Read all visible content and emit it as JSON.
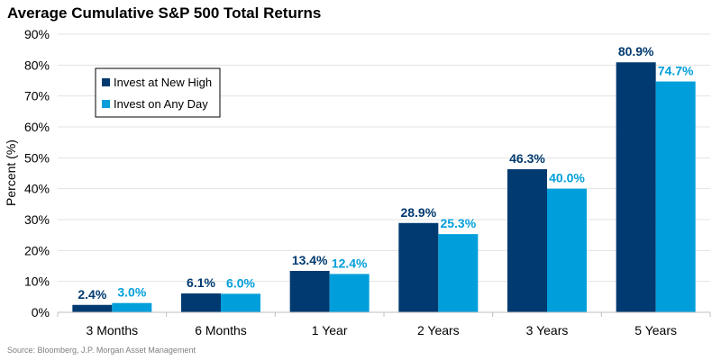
{
  "chart_data": {
    "type": "bar",
    "title": "Average Cumulative S&P 500 Total Returns",
    "xlabel": "",
    "ylabel": "Percent (%)",
    "ylim": [
      0,
      90
    ],
    "yticks": [
      "0%",
      "10%",
      "20%",
      "30%",
      "40%",
      "50%",
      "60%",
      "70%",
      "80%",
      "90%"
    ],
    "categories": [
      "3 Months",
      "6 Months",
      "1 Year",
      "2 Years",
      "3 Years",
      "5 Years"
    ],
    "series": [
      {
        "name": "Invest at New High",
        "color": "#003a70",
        "values": [
          2.4,
          6.1,
          13.4,
          28.9,
          46.3,
          80.9
        ],
        "labels": [
          "2.4%",
          "6.1%",
          "13.4%",
          "28.9%",
          "46.3%",
          "80.9%"
        ]
      },
      {
        "name": "Invest on Any Day",
        "color": "#009fdb",
        "values": [
          3.0,
          6.0,
          12.4,
          25.3,
          40.0,
          74.7
        ],
        "labels": [
          "3.0%",
          "6.0%",
          "12.4%",
          "25.3%",
          "40.0%",
          "74.7%"
        ]
      }
    ],
    "grid": true,
    "legend_position": "top-left"
  },
  "footer": {
    "source": "Source: Bloomberg, J.P. Morgan Asset Management"
  }
}
